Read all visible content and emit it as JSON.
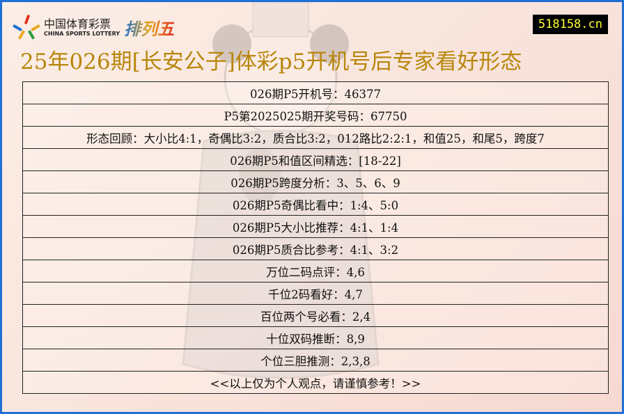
{
  "logo": {
    "cn": "中国体育彩票",
    "en": "CHINA SPORTS LOTTERY",
    "game": "排列五"
  },
  "site": "518158.cn",
  "title": "25年026期[长安公子]体彩p5开机号后专家看好形态",
  "rows": [
    "026期P5开机号：46377",
    "P5第2025025期开奖号码：67750",
    "形态回顾：大小比4:1，奇偶比3:2，质合比3:2，012路比2:2:1，和值25，和尾5，跨度7",
    "026期P5和值区间精选：[18-22]",
    "026期P5跨度分析：3、5、6、9",
    "026期P5奇偶比看中：1:4、5:0",
    "026期P5大小比推荐：4:1、1:4",
    "026期P5质合比参考：4:1、3:2",
    "万位二码点评：4,6",
    "千位2码看好：4,7",
    "百位两个号必看：2,4",
    "十位双码推断：8,9",
    "个位三胆推测：2,3,8",
    "<<以上仅为个人观点，请谨慎参考！>>"
  ],
  "colors": {
    "border": "#1f6fd6",
    "title": "#b8860b",
    "site_text": "#ffff33"
  }
}
